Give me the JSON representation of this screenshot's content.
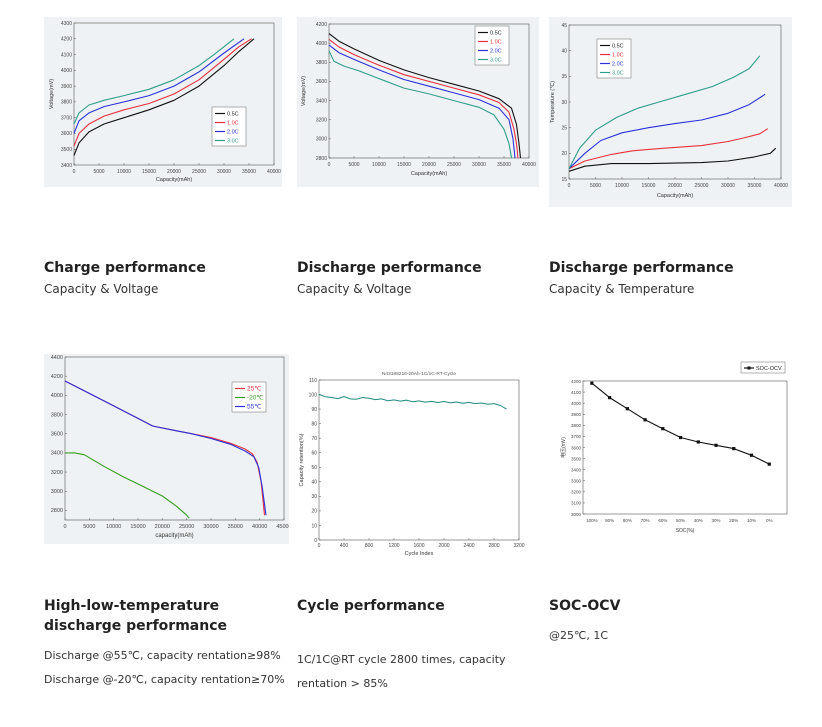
{
  "colors": {
    "c05": "#111111",
    "c10": "#e8303a",
    "c20": "#2a31d9",
    "c30": "#2f9e8a",
    "hl25": "#e8303a",
    "hlm20": "#35a020",
    "hl55": "#2a31d9",
    "cycle": "#1f8a82",
    "soc": "#111111"
  },
  "cards": [
    {
      "title": "Charge performance",
      "subtitle": "Capacity & Voltage"
    },
    {
      "title": "Discharge performance",
      "subtitle": "Capacity & Voltage"
    },
    {
      "title": "Discharge performance",
      "subtitle": "Capacity & Temperature"
    },
    {
      "title": "High-low-temperature discharge performance",
      "line1": "Discharge @55℃, capacity rentation≥98%",
      "line2": "Discharge @-20℃,  capacity rentation≥70%"
    },
    {
      "title": "Cycle performance",
      "line1": "1C/1C@RT cycle 2800 times, capacity",
      "line2": "rentation > 85%"
    },
    {
      "title": "SOC-OCV",
      "subtitle": "@25℃, 1C"
    }
  ],
  "chart_data": [
    {
      "type": "line",
      "xlabel": "Capacity(mAh)",
      "ylabel": "Voltage(mV)",
      "xlim": [
        0,
        40000
      ],
      "ylim": [
        3400,
        4300
      ],
      "xticks": [
        "0",
        "5000",
        "10000",
        "15000",
        "20000",
        "25000",
        "30000",
        "35000",
        "40000"
      ],
      "yticks": [
        "3400",
        "3500",
        "3600",
        "3700",
        "3800",
        "3900",
        "4000",
        "4100",
        "4200",
        "4300"
      ],
      "legend": "bottom-right",
      "series": [
        {
          "name": "0.5C",
          "color": "#111111",
          "x": [
            0,
            1000,
            3000,
            6000,
            10000,
            15000,
            20000,
            25000,
            30000,
            33000,
            36000
          ],
          "y": [
            3460,
            3540,
            3610,
            3660,
            3700,
            3750,
            3810,
            3900,
            4030,
            4120,
            4200
          ]
        },
        {
          "name": "1.0C",
          "color": "#e8303a",
          "x": [
            0,
            1000,
            3000,
            6000,
            10000,
            15000,
            20000,
            25000,
            30000,
            33000,
            35500
          ],
          "y": [
            3520,
            3600,
            3660,
            3710,
            3750,
            3790,
            3850,
            3940,
            4070,
            4150,
            4200
          ]
        },
        {
          "name": "2.0C",
          "color": "#2a31d9",
          "x": [
            0,
            1000,
            3000,
            6000,
            10000,
            15000,
            20000,
            25000,
            30000,
            34000
          ],
          "y": [
            3600,
            3680,
            3730,
            3770,
            3800,
            3840,
            3900,
            3990,
            4110,
            4200
          ]
        },
        {
          "name": "3.0C",
          "color": "#2f9e8a",
          "x": [
            0,
            1000,
            3000,
            6000,
            10000,
            15000,
            20000,
            25000,
            28000,
            32000
          ],
          "y": [
            3660,
            3730,
            3780,
            3810,
            3840,
            3880,
            3940,
            4030,
            4100,
            4200
          ]
        }
      ]
    },
    {
      "type": "line",
      "xlabel": "Capacity(mAh)",
      "ylabel": "Voltage(mV)",
      "xlim": [
        0,
        40000
      ],
      "ylim": [
        2800,
        4200
      ],
      "xticks": [
        "0",
        "5000",
        "10000",
        "15000",
        "20000",
        "25000",
        "30000",
        "35000",
        "40000"
      ],
      "yticks": [
        "2800",
        "3000",
        "3200",
        "3400",
        "3600",
        "3800",
        "4000",
        "4200"
      ],
      "legend": "top-right",
      "series": [
        {
          "name": "0.5C",
          "color": "#111111",
          "x": [
            0,
            2000,
            5000,
            10000,
            15000,
            20000,
            25000,
            30000,
            34000,
            36500,
            37500,
            38000,
            38300
          ],
          "y": [
            4100,
            4020,
            3940,
            3820,
            3720,
            3640,
            3570,
            3500,
            3420,
            3320,
            3150,
            2950,
            2800
          ]
        },
        {
          "name": "1.0C",
          "color": "#e8303a",
          "x": [
            0,
            2000,
            5000,
            10000,
            15000,
            20000,
            25000,
            30000,
            34000,
            36000,
            37000,
            37500,
            37800
          ],
          "y": [
            4040,
            3960,
            3880,
            3770,
            3670,
            3600,
            3530,
            3460,
            3380,
            3280,
            3100,
            2950,
            2800
          ]
        },
        {
          "name": "2.0C",
          "color": "#2a31d9",
          "x": [
            0,
            2000,
            5000,
            10000,
            15000,
            20000,
            25000,
            30000,
            34000,
            36000,
            36800,
            37200
          ],
          "y": [
            3980,
            3900,
            3830,
            3720,
            3620,
            3550,
            3480,
            3410,
            3320,
            3200,
            3000,
            2800
          ]
        },
        {
          "name": "3.0C",
          "color": "#2f9e8a",
          "x": [
            0,
            1000,
            3000,
            6000,
            10000,
            15000,
            20000,
            25000,
            30000,
            33000,
            35000,
            36000,
            36500
          ],
          "y": [
            3920,
            3810,
            3760,
            3710,
            3630,
            3530,
            3470,
            3400,
            3330,
            3250,
            3100,
            2950,
            2800
          ]
        }
      ]
    },
    {
      "type": "line",
      "xlabel": "Capacity(mAh)",
      "ylabel": "Temperature (℃)",
      "xlim": [
        0,
        40000
      ],
      "ylim": [
        15,
        45
      ],
      "xticks": [
        "0",
        "5000",
        "10000",
        "15000",
        "20000",
        "25000",
        "30000",
        "35000",
        "40000"
      ],
      "yticks": [
        "15",
        "20",
        "25",
        "30",
        "35",
        "40",
        "45"
      ],
      "legend": "top-left",
      "series": [
        {
          "name": "0.5C",
          "color": "#111111",
          "x": [
            0,
            3000,
            8000,
            15000,
            20000,
            25000,
            30000,
            35000,
            38000,
            39000
          ],
          "y": [
            16.5,
            17.5,
            18,
            18,
            18.1,
            18.2,
            18.5,
            19.3,
            20,
            21
          ]
        },
        {
          "name": "1.0C",
          "color": "#e8303a",
          "x": [
            0,
            3000,
            8000,
            12000,
            18000,
            25000,
            30000,
            33000,
            36000,
            37500
          ],
          "y": [
            17,
            18.5,
            19.8,
            20.5,
            21,
            21.5,
            22.3,
            23,
            23.8,
            24.8
          ]
        },
        {
          "name": "2.0C",
          "color": "#2a31d9",
          "x": [
            0,
            3000,
            6000,
            10000,
            15000,
            20000,
            25000,
            30000,
            34000,
            37000
          ],
          "y": [
            17,
            20,
            22.5,
            24,
            25,
            25.8,
            26.5,
            27.8,
            29.5,
            31.5
          ]
        },
        {
          "name": "3.0C",
          "color": "#2f9e8a",
          "x": [
            0,
            2000,
            5000,
            9000,
            13000,
            17000,
            22000,
            27000,
            31000,
            34000,
            36000
          ],
          "y": [
            17,
            21,
            24.5,
            27,
            28.8,
            30,
            31.5,
            33,
            34.8,
            36.5,
            39
          ]
        }
      ]
    },
    {
      "type": "line",
      "xlabel": "capacity(mAh)",
      "ylabel": "",
      "xlim": [
        0,
        45000
      ],
      "ylim": [
        2700,
        4400
      ],
      "xticks": [
        "0",
        "5000",
        "10000",
        "15000",
        "20000",
        "25000",
        "30000",
        "35000",
        "40000",
        "45000"
      ],
      "yticks": [
        "2800",
        "3000",
        "3200",
        "3400",
        "3600",
        "3800",
        "4000",
        "4200",
        "4400"
      ],
      "legend": "top-right",
      "series": [
        {
          "name": "25℃",
          "color": "#e8303a",
          "x": [
            0,
            5000,
            10000,
            15000,
            18000,
            22000,
            26000,
            30000,
            34000,
            37000,
            38500,
            39500,
            40300,
            41000
          ],
          "y": [
            4150,
            4020,
            3890,
            3760,
            3680,
            3640,
            3600,
            3560,
            3500,
            3440,
            3390,
            3300,
            3100,
            2750
          ]
        },
        {
          "name": "-20℃",
          "color": "#35a020",
          "x": [
            0,
            2000,
            4000,
            8000,
            12000,
            16000,
            20000,
            23000,
            25000,
            25500
          ],
          "y": [
            3400,
            3400,
            3380,
            3260,
            3150,
            3050,
            2950,
            2840,
            2750,
            2720
          ]
        },
        {
          "name": "55℃",
          "color": "#2a31d9",
          "x": [
            0,
            5000,
            10000,
            15000,
            18000,
            22000,
            26000,
            30000,
            34000,
            37000,
            38800,
            39800,
            40500,
            41300
          ],
          "y": [
            4150,
            4020,
            3890,
            3760,
            3680,
            3640,
            3600,
            3550,
            3490,
            3420,
            3360,
            3250,
            3050,
            2750
          ]
        }
      ]
    },
    {
      "type": "line",
      "title": "N43188216-20Ah-1C/1C-RT-Cycle",
      "xlabel": "Cycle Index",
      "ylabel": "Capacity retention(%)",
      "xlim": [
        0,
        3200
      ],
      "ylim": [
        0,
        110
      ],
      "xticks": [
        "0",
        "400",
        "800",
        "1200",
        "1600",
        "2000",
        "2400",
        "2800",
        "3200"
      ],
      "yticks": [
        "0",
        "10",
        "20",
        "30",
        "40",
        "50",
        "60",
        "70",
        "80",
        "90",
        "100",
        "110"
      ],
      "series": [
        {
          "name": "",
          "color": "#1f8a82",
          "x": [
            0,
            100,
            200,
            300,
            400,
            500,
            600,
            700,
            800,
            900,
            1000,
            1100,
            1200,
            1300,
            1400,
            1500,
            1600,
            1700,
            1800,
            1900,
            2000,
            2100,
            2200,
            2300,
            2400,
            2500,
            2600,
            2700,
            2800,
            2900,
            3000
          ],
          "y": [
            100,
            98.5,
            98,
            97.2,
            98.6,
            97,
            96.8,
            98,
            97.5,
            96.5,
            97,
            95.8,
            96.3,
            95.5,
            96.2,
            95,
            95.6,
            94.8,
            95.3,
            94.5,
            95.2,
            94.4,
            94.9,
            94,
            94.6,
            93.8,
            94.2,
            93.3,
            93.8,
            92.5,
            90
          ]
        }
      ]
    },
    {
      "type": "line",
      "xlabel": "SOC(%)",
      "ylabel": "电压(mV)",
      "categories": [
        "100%",
        "90%",
        "80%",
        "70%",
        "60%",
        "50%",
        "40%",
        "30%",
        "20%",
        "10%",
        "0%"
      ],
      "ylim": [
        3000,
        4200
      ],
      "yticks": [
        "3000",
        "3100",
        "3200",
        "3300",
        "3400",
        "3500",
        "3600",
        "3700",
        "3800",
        "3900",
        "4000",
        "4100",
        "4200"
      ],
      "legend": "top-right",
      "series": [
        {
          "name": "SOC-OCV",
          "color": "#111111",
          "values": [
            4180,
            4050,
            3950,
            3850,
            3770,
            3690,
            3650,
            3620,
            3590,
            3530,
            3450
          ]
        }
      ]
    }
  ]
}
